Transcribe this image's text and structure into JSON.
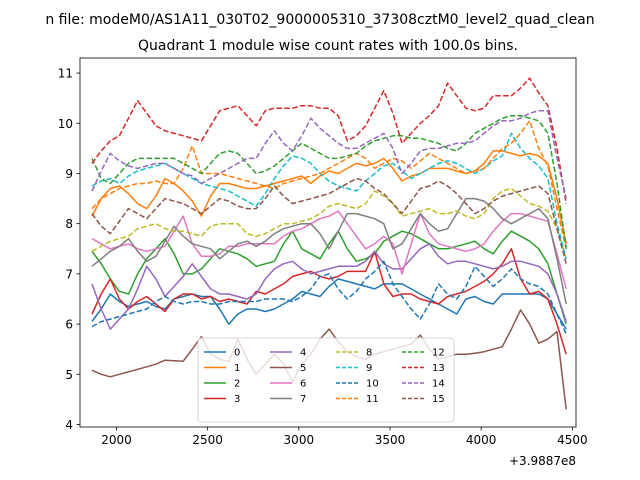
{
  "suptitle": "n file: modeM0/AS1A11_030T02_9000005310_37308cztM0_level2_quad_clean",
  "chart_data": {
    "type": "line",
    "title": "Quadrant 1 module wise count rates with 100.0s bins.",
    "xlabel": "",
    "ylabel": "",
    "x_offset_label": "+3.9887e8",
    "xlim": [
      1800,
      4520
    ],
    "ylim": [
      3.95,
      11.3
    ],
    "x_ticks": [
      2000,
      2500,
      3000,
      3500,
      4000,
      4500
    ],
    "y_ticks": [
      4,
      5,
      6,
      7,
      8,
      9,
      10,
      11
    ],
    "grid": false,
    "legend_position": "lower center",
    "legend_columns": 4,
    "x": [
      1866,
      1916,
      1966,
      2016,
      2066,
      2116,
      2166,
      2216,
      2266,
      2316,
      2366,
      2416,
      2466,
      2516,
      2566,
      2616,
      2666,
      2716,
      2766,
      2816,
      2866,
      2916,
      2966,
      3016,
      3066,
      3116,
      3166,
      3216,
      3266,
      3316,
      3366,
      3416,
      3466,
      3516,
      3566,
      3616,
      3666,
      3716,
      3766,
      3816,
      3866,
      3916,
      3966,
      4016,
      4066,
      4116,
      4166,
      4216,
      4266,
      4316,
      4366,
      4416,
      4466
    ],
    "series": [
      {
        "name": "0",
        "color": "#1f77b4",
        "dash": "solid",
        "values": [
          6.05,
          6.3,
          6.6,
          6.45,
          6.35,
          6.4,
          6.45,
          6.35,
          6.3,
          6.5,
          6.55,
          6.6,
          6.55,
          6.55,
          6.3,
          6.0,
          6.2,
          6.3,
          6.3,
          6.25,
          6.3,
          6.4,
          6.5,
          6.65,
          6.6,
          6.55,
          6.75,
          6.9,
          6.85,
          6.8,
          6.75,
          6.7,
          6.8,
          6.8,
          6.8,
          6.7,
          6.6,
          6.5,
          6.4,
          6.3,
          6.2,
          6.5,
          6.55,
          6.45,
          6.4,
          6.6,
          6.6,
          6.6,
          6.6,
          6.6,
          6.5,
          6.2,
          5.9
        ]
      },
      {
        "name": "1",
        "color": "#ff7f0e",
        "dash": "solid",
        "values": [
          8.15,
          8.5,
          8.7,
          8.75,
          8.6,
          8.4,
          8.3,
          8.55,
          8.9,
          8.8,
          8.65,
          8.45,
          8.15,
          8.55,
          8.8,
          8.8,
          8.75,
          8.7,
          8.7,
          8.75,
          8.8,
          8.85,
          8.9,
          8.95,
          8.8,
          8.95,
          9.05,
          9.0,
          9.1,
          9.2,
          9.15,
          9.2,
          9.3,
          9.1,
          8.85,
          8.95,
          9.0,
          9.1,
          9.1,
          9.1,
          9.05,
          9.0,
          9.05,
          9.2,
          9.45,
          9.45,
          9.4,
          9.35,
          9.4,
          9.35,
          9.2,
          8.5,
          7.6
        ]
      },
      {
        "name": "2",
        "color": "#2ca02c",
        "dash": "solid",
        "values": [
          7.45,
          7.2,
          6.9,
          6.65,
          6.6,
          7.0,
          7.3,
          7.5,
          7.7,
          7.4,
          7.0,
          7.0,
          7.1,
          7.3,
          7.5,
          7.45,
          7.4,
          7.3,
          7.15,
          7.2,
          7.25,
          7.6,
          7.85,
          7.5,
          7.4,
          7.3,
          7.6,
          7.85,
          7.5,
          7.25,
          7.3,
          7.4,
          7.65,
          7.75,
          7.85,
          7.8,
          7.7,
          7.6,
          7.5,
          7.5,
          7.55,
          7.6,
          7.65,
          7.5,
          7.4,
          7.65,
          7.85,
          7.75,
          7.65,
          7.5,
          7.2,
          6.6,
          6.0
        ]
      },
      {
        "name": "3",
        "color": "#d62728",
        "dash": "solid",
        "values": [
          6.2,
          6.6,
          6.9,
          6.5,
          6.3,
          6.45,
          6.55,
          6.4,
          6.25,
          6.5,
          6.6,
          6.6,
          6.5,
          6.55,
          6.45,
          6.5,
          6.45,
          6.4,
          6.65,
          6.6,
          6.7,
          6.8,
          6.95,
          7.0,
          7.05,
          6.95,
          6.9,
          6.95,
          7.05,
          7.05,
          7.05,
          7.45,
          6.8,
          6.55,
          6.6,
          6.6,
          6.5,
          6.45,
          6.4,
          6.55,
          6.6,
          6.65,
          6.75,
          6.85,
          7.0,
          7.2,
          7.5,
          6.9,
          6.6,
          6.65,
          6.5,
          6.0,
          5.4
        ]
      },
      {
        "name": "4",
        "color": "#9467bd",
        "dash": "solid",
        "values": [
          6.8,
          6.3,
          5.9,
          6.1,
          6.3,
          6.7,
          7.15,
          6.9,
          6.55,
          6.75,
          6.95,
          7.2,
          6.95,
          6.7,
          6.6,
          6.6,
          6.55,
          6.5,
          6.6,
          6.9,
          7.1,
          7.2,
          7.25,
          7.1,
          7.0,
          7.05,
          7.1,
          7.15,
          7.15,
          7.15,
          7.25,
          7.45,
          7.2,
          7.1,
          7.1,
          7.3,
          7.5,
          7.6,
          7.35,
          7.2,
          7.25,
          7.25,
          7.2,
          7.15,
          7.1,
          7.15,
          7.25,
          7.25,
          7.2,
          7.15,
          7.0,
          6.6,
          6.05
        ]
      },
      {
        "name": "5",
        "color": "#8c564b",
        "dash": "solid",
        "values": [
          5.08,
          5.0,
          4.95,
          5.0,
          5.05,
          5.1,
          5.15,
          5.2,
          5.28,
          5.27,
          5.26,
          5.5,
          5.75,
          5.4,
          5.3,
          5.25,
          5.7,
          5.3,
          5.0,
          5.2,
          5.4,
          5.2,
          4.85,
          5.2,
          5.4,
          5.7,
          5.9,
          5.65,
          5.45,
          5.35,
          5.3,
          5.4,
          5.45,
          5.5,
          5.55,
          5.6,
          5.78,
          5.5,
          5.3,
          5.35,
          5.4,
          5.4,
          5.42,
          5.45,
          5.5,
          5.55,
          5.9,
          6.28,
          6.0,
          5.62,
          5.7,
          5.85,
          4.3
        ]
      },
      {
        "name": "6",
        "color": "#e377c2",
        "dash": "solid",
        "values": [
          7.7,
          7.6,
          7.5,
          7.55,
          7.6,
          7.5,
          7.45,
          7.5,
          7.55,
          7.85,
          8.15,
          7.6,
          7.35,
          7.35,
          7.4,
          7.55,
          7.55,
          7.6,
          7.6,
          7.6,
          7.6,
          7.75,
          7.85,
          7.9,
          8.0,
          8.1,
          8.15,
          8.25,
          8.0,
          7.75,
          7.5,
          7.6,
          7.75,
          7.6,
          7.0,
          7.6,
          8.2,
          7.8,
          7.6,
          7.55,
          7.5,
          7.45,
          7.5,
          7.6,
          7.85,
          8.05,
          8.2,
          8.2,
          8.15,
          8.1,
          8.05,
          7.4,
          6.7
        ]
      },
      {
        "name": "7",
        "color": "#7f7f7f",
        "dash": "solid",
        "values": [
          7.15,
          7.3,
          7.45,
          7.55,
          7.7,
          7.45,
          7.25,
          7.35,
          7.65,
          7.95,
          7.75,
          7.6,
          7.55,
          7.5,
          7.3,
          7.45,
          7.6,
          7.65,
          7.55,
          7.65,
          7.8,
          7.9,
          7.95,
          8.0,
          8.0,
          7.8,
          7.5,
          7.85,
          8.2,
          8.2,
          8.15,
          8.1,
          8.0,
          7.5,
          7.6,
          7.9,
          8.2,
          8.0,
          7.85,
          7.9,
          8.2,
          8.5,
          8.5,
          8.45,
          8.3,
          8.1,
          8.0,
          8.1,
          8.2,
          8.3,
          8.1,
          7.3,
          6.4
        ]
      },
      {
        "name": "8",
        "color": "#bcbd22",
        "dash": "dashed",
        "values": [
          7.45,
          7.55,
          7.65,
          7.7,
          7.75,
          7.9,
          7.95,
          8.0,
          7.9,
          7.85,
          7.85,
          7.8,
          7.75,
          7.95,
          8.0,
          8.0,
          8.0,
          7.8,
          7.75,
          7.8,
          7.9,
          8.0,
          8.0,
          8.05,
          8.1,
          8.2,
          8.35,
          8.4,
          8.35,
          8.3,
          8.4,
          8.65,
          8.55,
          8.4,
          8.15,
          8.2,
          8.25,
          8.3,
          8.2,
          8.2,
          8.25,
          8.15,
          8.1,
          8.2,
          8.5,
          8.65,
          8.7,
          8.55,
          8.4,
          8.35,
          8.25,
          7.9,
          7.3
        ]
      },
      {
        "name": "9",
        "color": "#17becf",
        "dash": "dashed",
        "values": [
          8.75,
          8.85,
          8.9,
          8.8,
          8.95,
          9.05,
          9.1,
          9.15,
          9.2,
          9.1,
          9.0,
          8.9,
          8.8,
          8.75,
          8.7,
          8.65,
          8.55,
          8.45,
          8.35,
          8.6,
          8.9,
          9.15,
          9.35,
          9.3,
          9.2,
          9.0,
          8.85,
          8.75,
          8.7,
          8.65,
          8.85,
          9.0,
          9.15,
          9.2,
          9.05,
          8.9,
          9.0,
          9.1,
          9.2,
          9.25,
          9.2,
          9.1,
          9.0,
          9.1,
          9.25,
          9.35,
          9.8,
          9.5,
          9.3,
          9.15,
          8.9,
          8.0,
          7.3
        ]
      },
      {
        "name": "10",
        "color": "#1f77b4",
        "dash": "dashed",
        "values": [
          5.95,
          6.05,
          6.1,
          6.15,
          6.2,
          6.25,
          6.3,
          6.45,
          6.55,
          6.45,
          6.4,
          6.45,
          6.45,
          6.4,
          6.4,
          6.45,
          6.45,
          6.45,
          6.45,
          6.5,
          6.5,
          6.5,
          6.45,
          6.55,
          6.7,
          6.95,
          7.0,
          6.7,
          6.5,
          6.65,
          6.9,
          7.05,
          7.25,
          6.8,
          6.55,
          6.3,
          6.1,
          6.4,
          6.8,
          6.6,
          6.5,
          6.75,
          7.15,
          6.95,
          6.75,
          6.9,
          7.1,
          6.9,
          6.8,
          6.75,
          6.6,
          6.2,
          5.8
        ]
      },
      {
        "name": "11",
        "color": "#ff7f0e",
        "dash": "dashed",
        "values": [
          8.3,
          8.5,
          8.6,
          8.7,
          8.75,
          8.8,
          8.8,
          8.85,
          8.8,
          8.8,
          9.1,
          9.55,
          9.0,
          9.0,
          9.0,
          8.95,
          8.9,
          8.85,
          8.8,
          8.75,
          8.7,
          8.8,
          8.85,
          8.9,
          8.95,
          9.0,
          9.1,
          9.2,
          9.3,
          9.4,
          9.3,
          9.1,
          9.2,
          9.3,
          9.25,
          9.1,
          9.25,
          9.4,
          9.3,
          9.2,
          9.1,
          9.0,
          9.05,
          9.1,
          9.3,
          9.5,
          9.6,
          9.8,
          10.05,
          9.5,
          9.15,
          8.3,
          7.5
        ]
      },
      {
        "name": "12",
        "color": "#2ca02c",
        "dash": "dashed",
        "values": [
          9.3,
          8.9,
          8.8,
          9.0,
          9.2,
          9.3,
          9.3,
          9.3,
          9.3,
          9.3,
          9.2,
          9.1,
          9.0,
          9.2,
          9.4,
          9.45,
          9.4,
          9.2,
          9.0,
          9.05,
          9.15,
          9.3,
          9.45,
          9.6,
          9.5,
          9.4,
          9.3,
          9.3,
          9.35,
          9.4,
          9.55,
          9.65,
          9.7,
          9.75,
          9.75,
          9.7,
          9.7,
          9.65,
          9.6,
          9.5,
          9.45,
          9.6,
          9.8,
          9.9,
          10.0,
          10.1,
          10.15,
          10.15,
          10.1,
          10.05,
          9.8,
          8.8,
          7.5
        ]
      },
      {
        "name": "13",
        "color": "#d62728",
        "dash": "dashed",
        "values": [
          9.2,
          9.45,
          9.65,
          9.75,
          10.1,
          10.45,
          10.2,
          9.95,
          9.85,
          9.8,
          9.75,
          9.7,
          9.65,
          9.95,
          10.25,
          10.3,
          10.35,
          10.15,
          9.95,
          10.25,
          10.3,
          10.3,
          10.3,
          10.35,
          10.35,
          10.3,
          10.3,
          10.15,
          9.65,
          9.75,
          9.95,
          10.3,
          10.65,
          10.2,
          9.6,
          9.8,
          10.0,
          10.15,
          10.35,
          10.8,
          10.55,
          10.3,
          10.25,
          10.3,
          10.55,
          10.55,
          10.55,
          10.7,
          10.9,
          10.6,
          10.35,
          9.5,
          8.4
        ]
      },
      {
        "name": "14",
        "color": "#9467bd",
        "dash": "dashed",
        "values": [
          8.65,
          9.05,
          9.4,
          9.25,
          9.15,
          9.1,
          9.15,
          9.2,
          9.2,
          9.1,
          9.0,
          8.95,
          8.8,
          8.9,
          9.0,
          9.1,
          9.2,
          9.3,
          9.3,
          9.6,
          9.85,
          9.6,
          9.45,
          9.75,
          10.1,
          9.9,
          9.75,
          9.6,
          9.5,
          9.5,
          9.6,
          9.7,
          9.8,
          9.5,
          9.0,
          9.2,
          9.45,
          9.5,
          9.5,
          9.55,
          9.6,
          9.6,
          9.65,
          9.8,
          9.95,
          10.05,
          10.05,
          10.1,
          10.2,
          10.25,
          10.25,
          9.3,
          8.5
        ]
      },
      {
        "name": "15",
        "color": "#8c564b",
        "dash": "dashed",
        "values": [
          8.2,
          7.95,
          7.8,
          8.05,
          8.3,
          8.2,
          8.1,
          8.3,
          8.5,
          8.45,
          8.4,
          8.3,
          8.2,
          8.35,
          8.5,
          8.45,
          8.35,
          8.3,
          8.3,
          8.5,
          8.75,
          8.55,
          8.4,
          8.45,
          8.5,
          8.55,
          8.6,
          8.7,
          8.8,
          8.9,
          8.85,
          8.7,
          8.6,
          8.4,
          8.2,
          8.45,
          8.7,
          8.75,
          8.85,
          8.75,
          8.6,
          8.4,
          8.2,
          8.3,
          8.45,
          8.55,
          8.6,
          8.65,
          8.7,
          8.75,
          8.6,
          7.9,
          7.2
        ]
      }
    ]
  }
}
